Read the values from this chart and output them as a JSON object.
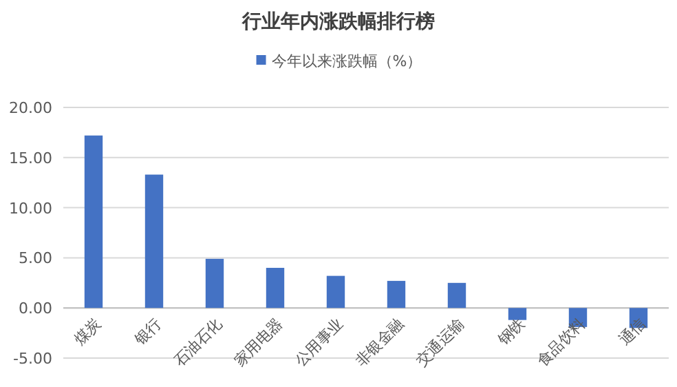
{
  "chart_data": {
    "type": "bar",
    "title": "行业年内涨跌幅排行榜",
    "categories": [
      "煤炭",
      "银行",
      "石油石化",
      "家用电器",
      "公用事业",
      "非银金融",
      "交通运输",
      "钢铁",
      "食品饮料",
      "通信"
    ],
    "series": [
      {
        "name": "今年以来涨跌幅（%）",
        "color": "#4472c4",
        "values": [
          17.2,
          13.3,
          4.9,
          4.0,
          3.2,
          2.7,
          2.5,
          -1.2,
          -1.9,
          -2.0
        ]
      }
    ],
    "ylim": [
      -5,
      20
    ],
    "yticks": [
      {
        "value": -5,
        "label": "-5.00"
      },
      {
        "value": 0,
        "label": "0.00"
      },
      {
        "value": 5,
        "label": "5.00"
      },
      {
        "value": 10,
        "label": "10.00"
      },
      {
        "value": 15,
        "label": "15.00"
      },
      {
        "value": 20,
        "label": "20.00"
      }
    ],
    "grid": "y",
    "legend": "top"
  }
}
